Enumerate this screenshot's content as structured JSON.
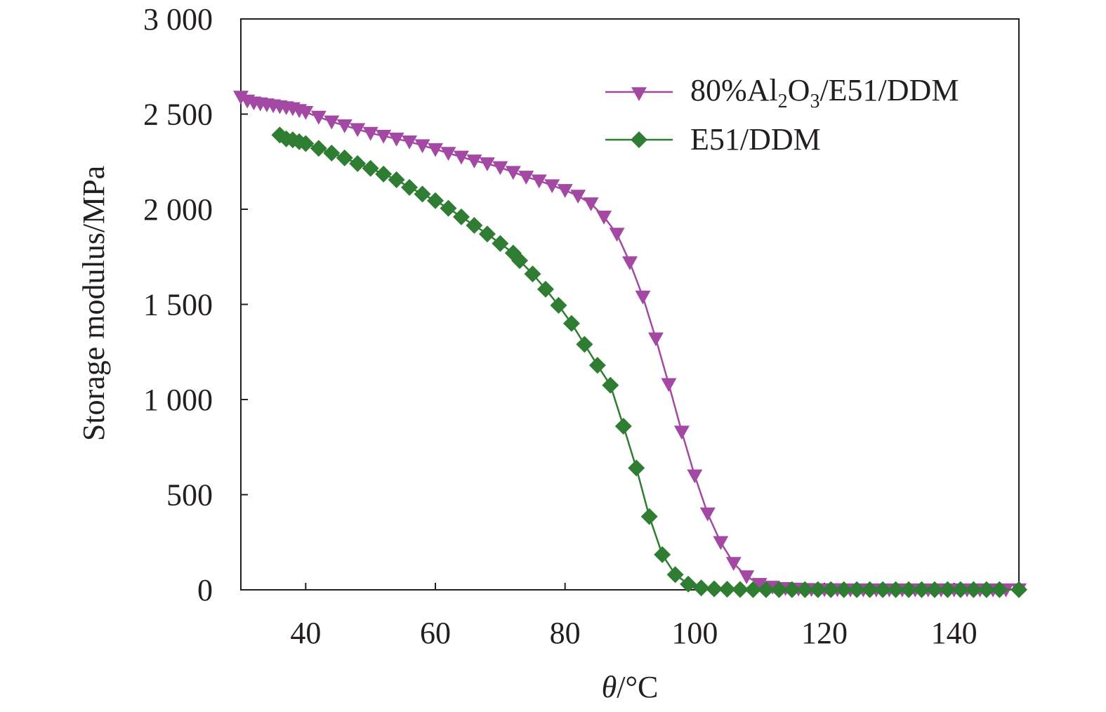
{
  "chart_data": {
    "type": "line",
    "xlabel": {
      "var": "θ",
      "unit": "/°C"
    },
    "ylabel": "Storage modulus/MPa",
    "xlim": [
      30,
      150
    ],
    "ylim": [
      0,
      3000
    ],
    "x_ticks": [
      40,
      60,
      80,
      100,
      120,
      140
    ],
    "y_ticks": [
      0,
      500,
      1000,
      1500,
      2000,
      2500,
      3000
    ],
    "y_tick_labels": [
      "0",
      "500",
      "1 000",
      "1 500",
      "2 000",
      "2 500",
      "3 000"
    ],
    "grid": false,
    "legend_position": "top-right",
    "series": [
      {
        "name": "80%Al2O3/E51/DDM",
        "legend": {
          "a": "80%Al",
          "sub1": "2",
          "b": "O",
          "sub2": "3",
          "c": "/E51/DDM"
        },
        "color": "#a349a4",
        "marker": "triangle-down",
        "x": [
          30,
          31,
          32,
          33,
          34,
          35,
          36,
          37,
          38,
          39,
          40,
          42,
          44,
          46,
          48,
          50,
          52,
          54,
          56,
          58,
          60,
          62,
          64,
          66,
          68,
          70,
          72,
          74,
          76,
          78,
          80,
          82,
          84,
          86,
          88,
          90,
          92,
          94,
          96,
          98,
          100,
          102,
          104,
          106,
          108,
          110,
          112,
          114,
          116,
          118,
          120,
          122,
          124,
          126,
          128,
          130,
          132,
          134,
          136,
          138,
          140,
          142,
          144,
          146,
          148,
          150
        ],
        "y": [
          2590,
          2570,
          2560,
          2555,
          2550,
          2545,
          2540,
          2535,
          2530,
          2520,
          2510,
          2485,
          2460,
          2440,
          2420,
          2400,
          2385,
          2370,
          2355,
          2335,
          2315,
          2295,
          2275,
          2255,
          2240,
          2220,
          2195,
          2170,
          2150,
          2125,
          2100,
          2070,
          2030,
          1960,
          1870,
          1720,
          1540,
          1320,
          1080,
          830,
          600,
          400,
          250,
          140,
          70,
          30,
          15,
          8,
          5,
          3,
          2,
          2,
          1,
          1,
          1,
          1,
          1,
          1,
          1,
          1,
          1,
          1,
          1,
          1,
          1,
          1
        ]
      },
      {
        "name": "E51/DDM",
        "color": "#2e7d32",
        "marker": "diamond",
        "x": [
          36,
          37,
          38,
          39,
          40,
          42,
          44,
          46,
          48,
          50,
          52,
          54,
          56,
          58,
          60,
          62,
          64,
          66,
          68,
          70,
          72,
          73,
          75,
          77,
          79,
          81,
          83,
          85,
          87,
          89,
          91,
          93,
          95,
          97,
          99,
          101,
          103,
          105,
          107,
          109,
          111,
          113,
          115,
          117,
          119,
          121,
          123,
          125,
          127,
          129,
          131,
          133,
          135,
          137,
          139,
          141,
          143,
          145,
          147,
          150
        ],
        "y": [
          2390,
          2370,
          2365,
          2355,
          2345,
          2320,
          2295,
          2270,
          2240,
          2215,
          2185,
          2155,
          2115,
          2080,
          2045,
          2005,
          1960,
          1915,
          1870,
          1820,
          1770,
          1730,
          1660,
          1580,
          1495,
          1400,
          1290,
          1180,
          1075,
          860,
          640,
          385,
          185,
          80,
          30,
          10,
          5,
          3,
          2,
          1,
          1,
          1,
          1,
          1,
          1,
          1,
          1,
          1,
          1,
          1,
          1,
          1,
          1,
          1,
          1,
          1,
          1,
          1,
          1,
          1
        ]
      }
    ]
  }
}
